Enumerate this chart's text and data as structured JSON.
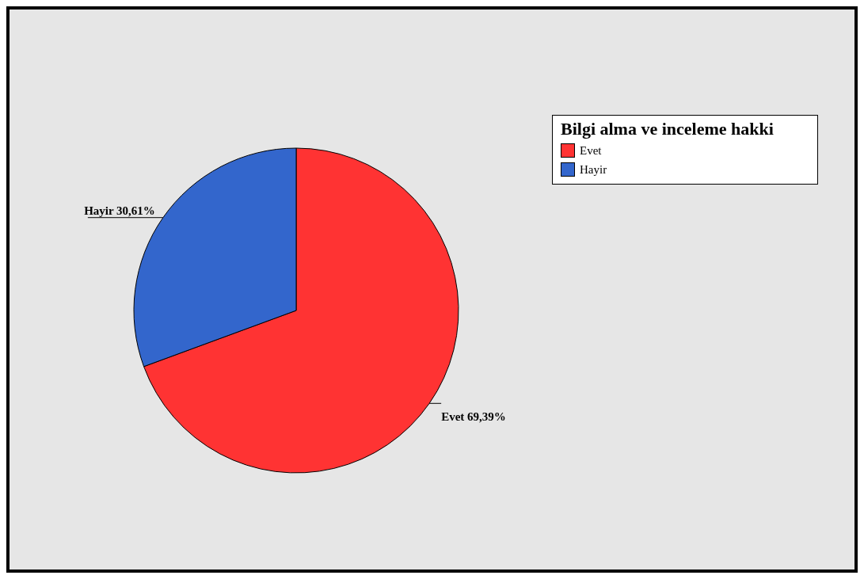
{
  "chart_data": {
    "type": "pie",
    "legend_title": "Bilgi alma ve inceleme hakki",
    "legend": "top right",
    "categories": [
      "Evet",
      "Hayir"
    ],
    "values": [
      69.39,
      30.61
    ],
    "colors": [
      "#ff3333",
      "#3366cc"
    ],
    "value_labels": [
      "69,39%",
      "30,61%"
    ]
  }
}
